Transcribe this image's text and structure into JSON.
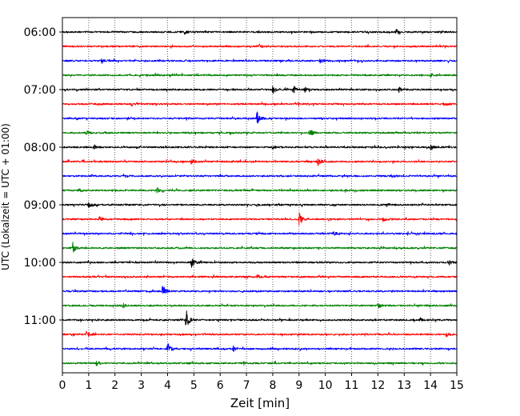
{
  "chart_data": {
    "type": "line",
    "title": "",
    "xlabel": "Zeit  [min]",
    "ylabel": "UTC (Lokalzeit = UTC + 01:00)",
    "xlim": [
      0,
      15
    ],
    "x_ticks": [
      0,
      1,
      2,
      3,
      4,
      5,
      6,
      7,
      8,
      9,
      10,
      11,
      12,
      13,
      14,
      15
    ],
    "x_tick_labels": [
      "0",
      "1",
      "2",
      "3",
      "4",
      "5",
      "6",
      "7",
      "8",
      "9",
      "10",
      "11",
      "12",
      "13",
      "14",
      "15"
    ],
    "y_tick_labels": [
      "06:00",
      "07:00",
      "08:00",
      "09:00",
      "10:00",
      "11:00"
    ],
    "grid": "vertical dotted lines at each minute",
    "color_cycle": [
      "#000000",
      "#ff0000",
      "#0000ff",
      "#008000"
    ],
    "trace_interval_min": 15,
    "traces": [
      {
        "start": "06:00",
        "color": "#000000",
        "events": [
          {
            "t": 4.6,
            "a": 0.4
          },
          {
            "t": 12.7,
            "a": 0.45
          }
        ]
      },
      {
        "start": "06:15",
        "color": "#ff0000",
        "events": [
          {
            "t": 7.5,
            "a": 0.35
          }
        ]
      },
      {
        "start": "06:30",
        "color": "#0000ff",
        "events": [
          {
            "t": 1.5,
            "a": 0.3
          },
          {
            "t": 9.8,
            "a": 0.3
          }
        ]
      },
      {
        "start": "06:45",
        "color": "#008000",
        "events": [
          {
            "t": 3.5,
            "a": 0.35
          },
          {
            "t": 14.0,
            "a": 0.3
          }
        ]
      },
      {
        "start": "07:00",
        "color": "#000000",
        "events": [
          {
            "t": 8.0,
            "a": 0.55
          },
          {
            "t": 8.8,
            "a": 0.45
          },
          {
            "t": 9.2,
            "a": 0.4
          },
          {
            "t": 12.8,
            "a": 0.35
          }
        ]
      },
      {
        "start": "07:15",
        "color": "#ff0000",
        "events": [
          {
            "t": 2.6,
            "a": 0.3
          },
          {
            "t": 14.5,
            "a": 0.35
          }
        ]
      },
      {
        "start": "07:30",
        "color": "#0000ff",
        "events": [
          {
            "t": 7.4,
            "a": 1.0
          }
        ]
      },
      {
        "start": "07:45",
        "color": "#008000",
        "events": [
          {
            "t": 0.9,
            "a": 0.35
          },
          {
            "t": 9.4,
            "a": 0.6
          }
        ]
      },
      {
        "start": "08:00",
        "color": "#000000",
        "events": [
          {
            "t": 1.2,
            "a": 0.35
          },
          {
            "t": 8.0,
            "a": 0.35
          },
          {
            "t": 14.0,
            "a": 0.45
          }
        ]
      },
      {
        "start": "08:15",
        "color": "#ff0000",
        "events": [
          {
            "t": 4.9,
            "a": 0.35
          },
          {
            "t": 9.7,
            "a": 0.75
          }
        ]
      },
      {
        "start": "08:30",
        "color": "#0000ff",
        "events": [
          {
            "t": 2.3,
            "a": 0.25
          },
          {
            "t": 12.5,
            "a": 0.3
          }
        ]
      },
      {
        "start": "08:45",
        "color": "#008000",
        "events": [
          {
            "t": 0.6,
            "a": 0.3
          },
          {
            "t": 3.6,
            "a": 0.3
          }
        ]
      },
      {
        "start": "09:00",
        "color": "#000000",
        "events": [
          {
            "t": 1.0,
            "a": 0.45
          },
          {
            "t": 12.3,
            "a": 0.35
          }
        ]
      },
      {
        "start": "09:15",
        "color": "#ff0000",
        "events": [
          {
            "t": 1.4,
            "a": 0.45
          },
          {
            "t": 9.0,
            "a": 1.2
          },
          {
            "t": 12.2,
            "a": 0.35
          }
        ]
      },
      {
        "start": "09:30",
        "color": "#0000ff",
        "events": [
          {
            "t": 10.3,
            "a": 0.4
          },
          {
            "t": 15.0,
            "a": 0.3
          }
        ]
      },
      {
        "start": "09:45",
        "color": "#008000",
        "events": [
          {
            "t": 0.4,
            "a": 0.75
          }
        ]
      },
      {
        "start": "10:00",
        "color": "#000000",
        "events": [
          {
            "t": 4.9,
            "a": 0.9
          },
          {
            "t": 14.7,
            "a": 0.3
          }
        ]
      },
      {
        "start": "10:15",
        "color": "#ff0000",
        "events": [
          {
            "t": 7.4,
            "a": 0.3
          }
        ]
      },
      {
        "start": "10:30",
        "color": "#0000ff",
        "events": [
          {
            "t": 3.8,
            "a": 0.85
          }
        ]
      },
      {
        "start": "10:45",
        "color": "#008000",
        "events": [
          {
            "t": 2.3,
            "a": 0.3
          },
          {
            "t": 12.0,
            "a": 0.45
          }
        ]
      },
      {
        "start": "11:00",
        "color": "#000000",
        "events": [
          {
            "t": 4.7,
            "a": 1.6
          },
          {
            "t": 13.6,
            "a": 0.3
          }
        ]
      },
      {
        "start": "11:15",
        "color": "#ff0000",
        "events": [
          {
            "t": 0.9,
            "a": 0.6
          },
          {
            "t": 14.6,
            "a": 0.4
          }
        ]
      },
      {
        "start": "11:30",
        "color": "#0000ff",
        "events": [
          {
            "t": 4.0,
            "a": 0.85
          },
          {
            "t": 6.5,
            "a": 0.35
          }
        ]
      },
      {
        "start": "11:45",
        "color": "#008000",
        "events": [
          {
            "t": 1.3,
            "a": 0.4
          }
        ]
      }
    ]
  }
}
